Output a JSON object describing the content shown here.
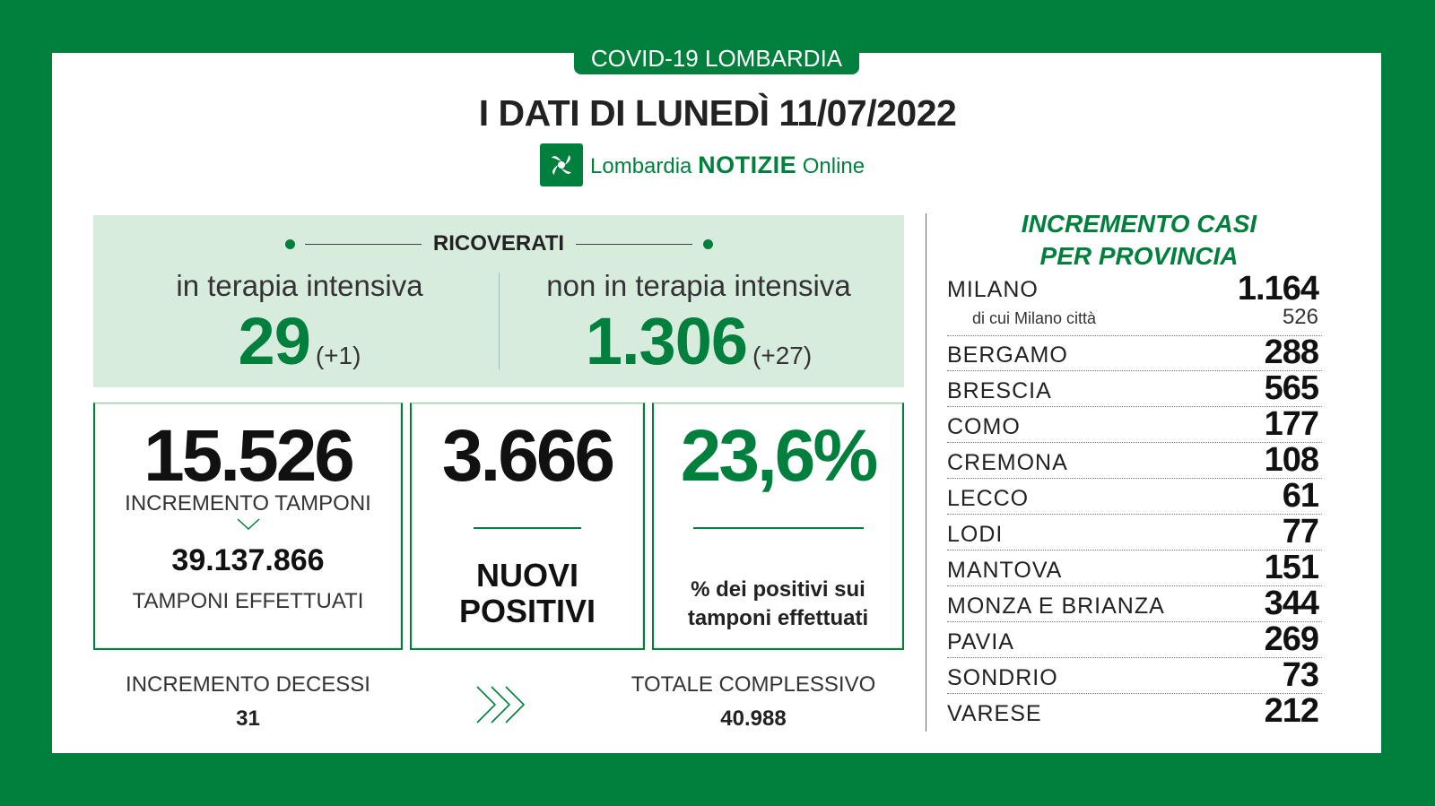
{
  "header": {
    "tag": "COVID-19 LOMBARDIA",
    "title": "I DATI DI LUNEDÌ 11/07/2022",
    "brand_regular": "Lombardia",
    "brand_bold": "NOTIZIE",
    "brand_suffix": "Online"
  },
  "ricoverati": {
    "label": "RICOVERATI",
    "intensiva": {
      "label": "in terapia intensiva",
      "value": "29",
      "delta": "(+1)"
    },
    "non_intensiva": {
      "label": "non in terapia intensiva",
      "value": "1.306",
      "delta": "(+27)"
    }
  },
  "tamponi": {
    "increment": "15.526",
    "increment_label": "INCREMENTO TAMPONI",
    "total": "39.137.866",
    "total_label": "TAMPONI EFFETTUATI"
  },
  "positivi": {
    "value": "3.666",
    "label_line1": "NUOVI",
    "label_line2": "POSITIVI"
  },
  "percentuale": {
    "value": "23,6%",
    "label_line1": "% dei positivi sui",
    "label_line2": "tamponi effettuati"
  },
  "decessi": {
    "increment_label": "INCREMENTO DECESSI",
    "increment": "31",
    "total_label": "TOTALE COMPLESSIVO",
    "total": "40.988"
  },
  "province": {
    "title_line1": "INCREMENTO CASI",
    "title_line2": "PER PROVINCIA",
    "milano_city_label": "di cui Milano città",
    "milano_city_value": "526",
    "items": [
      {
        "name": "MILANO",
        "value": "1.164"
      },
      {
        "name": "BERGAMO",
        "value": "288"
      },
      {
        "name": "BRESCIA",
        "value": "565"
      },
      {
        "name": "COMO",
        "value": "177"
      },
      {
        "name": "CREMONA",
        "value": "108"
      },
      {
        "name": "LECCO",
        "value": "61"
      },
      {
        "name": "LODI",
        "value": "77"
      },
      {
        "name": "MANTOVA",
        "value": "151"
      },
      {
        "name": "MONZA E BRIANZA",
        "value": "344"
      },
      {
        "name": "PAVIA",
        "value": "269"
      },
      {
        "name": "SONDRIO",
        "value": "73"
      },
      {
        "name": "VARESE",
        "value": "212"
      }
    ]
  },
  "colors": {
    "brand_green": "#007f3d",
    "panel_green": "#d8ecde"
  }
}
